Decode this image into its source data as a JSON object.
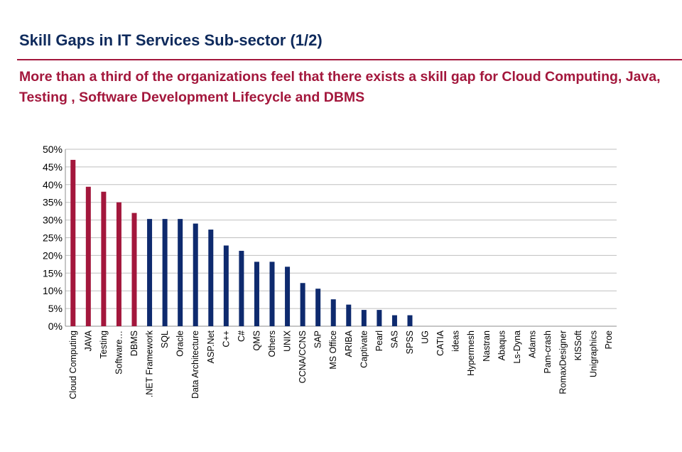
{
  "page": {
    "title": "Skill Gaps in IT Services Sub-sector (1/2)",
    "subtitle": "More than a third of the organizations feel that there exists a skill gap for Cloud Computing, Java,  Testing , Software Development Lifecycle and DBMS"
  },
  "colors": {
    "highlight": "#a3173c",
    "normal": "#0e2a6e",
    "title": "#0e2a5c",
    "grid": "#bfbfbf"
  },
  "chart_data": {
    "type": "bar",
    "title": "",
    "xlabel": "",
    "ylabel": "",
    "ylim": [
      0,
      50
    ],
    "yticks": [
      "0%",
      "5%",
      "10%",
      "15%",
      "20%",
      "25%",
      "30%",
      "35%",
      "40%",
      "45%",
      "50%"
    ],
    "grid": true,
    "categories": [
      "Cloud Computing",
      "JAVA",
      "Testing",
      "Software…",
      "DBMS",
      ".NET Framework",
      "SQL",
      "Oracle",
      "Data Architecture",
      "ASP.Net",
      "C++",
      "C#",
      "QMS",
      "Others",
      "UNIX",
      "CCNA/CCNS",
      "SAP",
      "MS Office",
      "ARIBA",
      "Captivate",
      "Pearl",
      "SAS",
      "SPSS",
      "UG",
      "CATIA",
      "ideas",
      "Hypermesh",
      "Nastran",
      "Abaqus",
      "Ls-Dyna",
      "Adams",
      "Pam-crash",
      "RomaxDesigner",
      "KISSoft",
      "Unigraphics",
      "Proe"
    ],
    "values": [
      47,
      39.4,
      38,
      35,
      32,
      30.3,
      30.3,
      30.3,
      29,
      27.3,
      22.8,
      21.3,
      18.2,
      18.2,
      16.8,
      12.2,
      10.6,
      7.6,
      6.1,
      4.6,
      4.6,
      3.1,
      3.1,
      0,
      0,
      0,
      0,
      0,
      0,
      0,
      0,
      0,
      0,
      0,
      0,
      0
    ],
    "highlighted": [
      "Cloud Computing",
      "JAVA",
      "Testing",
      "Software…",
      "DBMS"
    ]
  }
}
